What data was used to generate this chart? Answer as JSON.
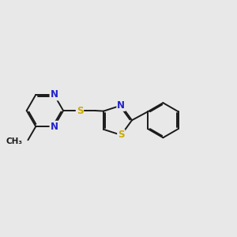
{
  "bg_color": "#e8e8e8",
  "bond_color": "#1a1a1a",
  "N_color": "#2222cc",
  "S_color": "#ccaa00",
  "line_width": 1.4,
  "figsize": [
    3.0,
    3.0
  ],
  "dpi": 100,
  "xlim": [
    -2.5,
    2.8
  ],
  "ylim": [
    -1.8,
    1.8
  ]
}
